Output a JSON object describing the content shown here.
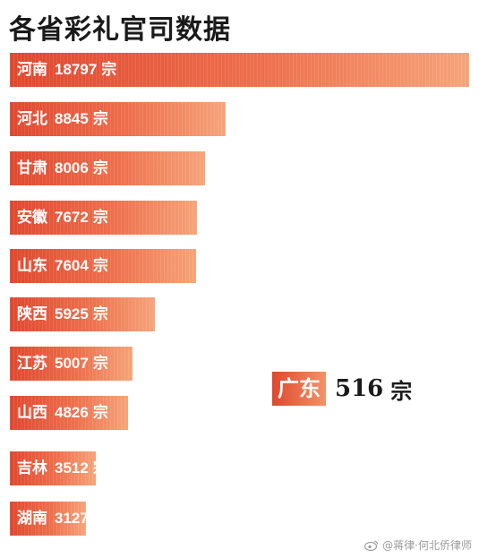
{
  "title": "各省彩礼官司数据",
  "chart_data": {
    "type": "bar",
    "orientation": "horizontal",
    "unit": "宗",
    "categories": [
      "河南",
      "河北",
      "甘肃",
      "安徽",
      "山东",
      "陕西",
      "江苏",
      "山西",
      "吉林",
      "湖南"
    ],
    "values": [
      18797,
      8845,
      8006,
      7672,
      7604,
      5925,
      5007,
      4826,
      3512,
      3127
    ],
    "bar_color_start": "#e0472f",
    "bar_color_end": "#f6a47a"
  },
  "callout": {
    "name": "广东",
    "value": "516",
    "unit": "宗"
  },
  "watermark": {
    "icon": "weibo-icon",
    "text": "@蒋律·何北侨律师"
  }
}
